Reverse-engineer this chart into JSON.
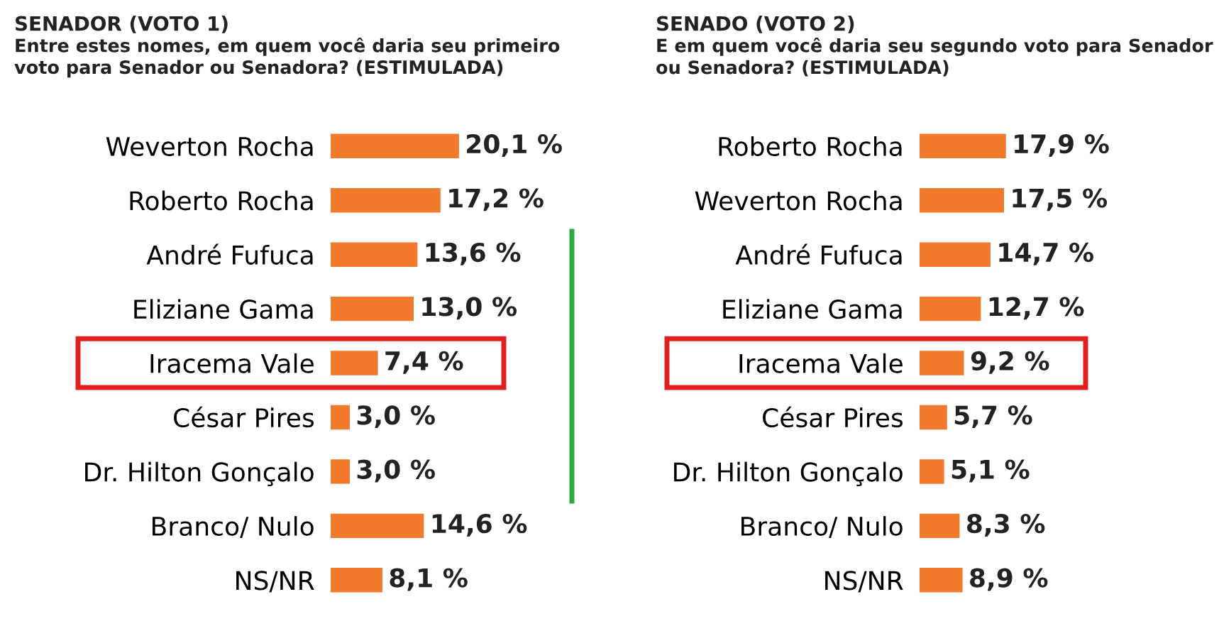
{
  "chart_data": [
    {
      "type": "bar",
      "orientation": "horizontal",
      "title": "SENADOR (VOTO 1)",
      "subtitle": "Entre estes nomes, em quem você daria seu primeiro\nvoto para Senador ou Senadora? (ESTIMULADA)",
      "categories": [
        "Weverton Rocha",
        "Roberto Rocha",
        "André Fufuca",
        "Eliziane Gama",
        "Iracema Vale",
        "César Pires",
        "Dr. Hilton Gonçalo",
        "Branco/ Nulo",
        "NS/NR"
      ],
      "values": [
        20.1,
        17.2,
        13.6,
        13.0,
        7.4,
        3.0,
        3.0,
        14.6,
        8.1
      ],
      "value_labels": [
        "20,1 %",
        "17,2 %",
        "13,6 %",
        "13,0 %",
        "7,4 %",
        "3,0 %",
        "3,0 %",
        "14,6 %",
        "8,1 %"
      ],
      "color": "#f27a2c",
      "tick_labels": "y",
      "grid": false,
      "legend": false
    },
    {
      "type": "bar",
      "orientation": "horizontal",
      "title": "SENADO (VOTO 2)",
      "subtitle": "E em quem você daria seu segundo voto para Senador\nou Senadora? (ESTIMULADA)",
      "categories": [
        "Roberto Rocha",
        "Weverton Rocha",
        "André Fufuca",
        "Eliziane Gama",
        "Iracema Vale",
        "César Pires",
        "Dr. Hilton Gonçalo",
        "Branco/ Nulo",
        "NS/NR"
      ],
      "values": [
        17.9,
        17.5,
        14.7,
        12.7,
        9.2,
        5.7,
        5.1,
        8.3,
        8.9
      ],
      "value_labels": [
        "17,9 %",
        "17,5 %",
        "14,7 %",
        "12,7 %",
        "9,2 %",
        "5,7 %",
        "5,1 %",
        "8,3 %",
        "8,9 %"
      ],
      "color": "#f27a2c",
      "tick_labels": "y",
      "grid": false,
      "legend": false
    }
  ]
}
